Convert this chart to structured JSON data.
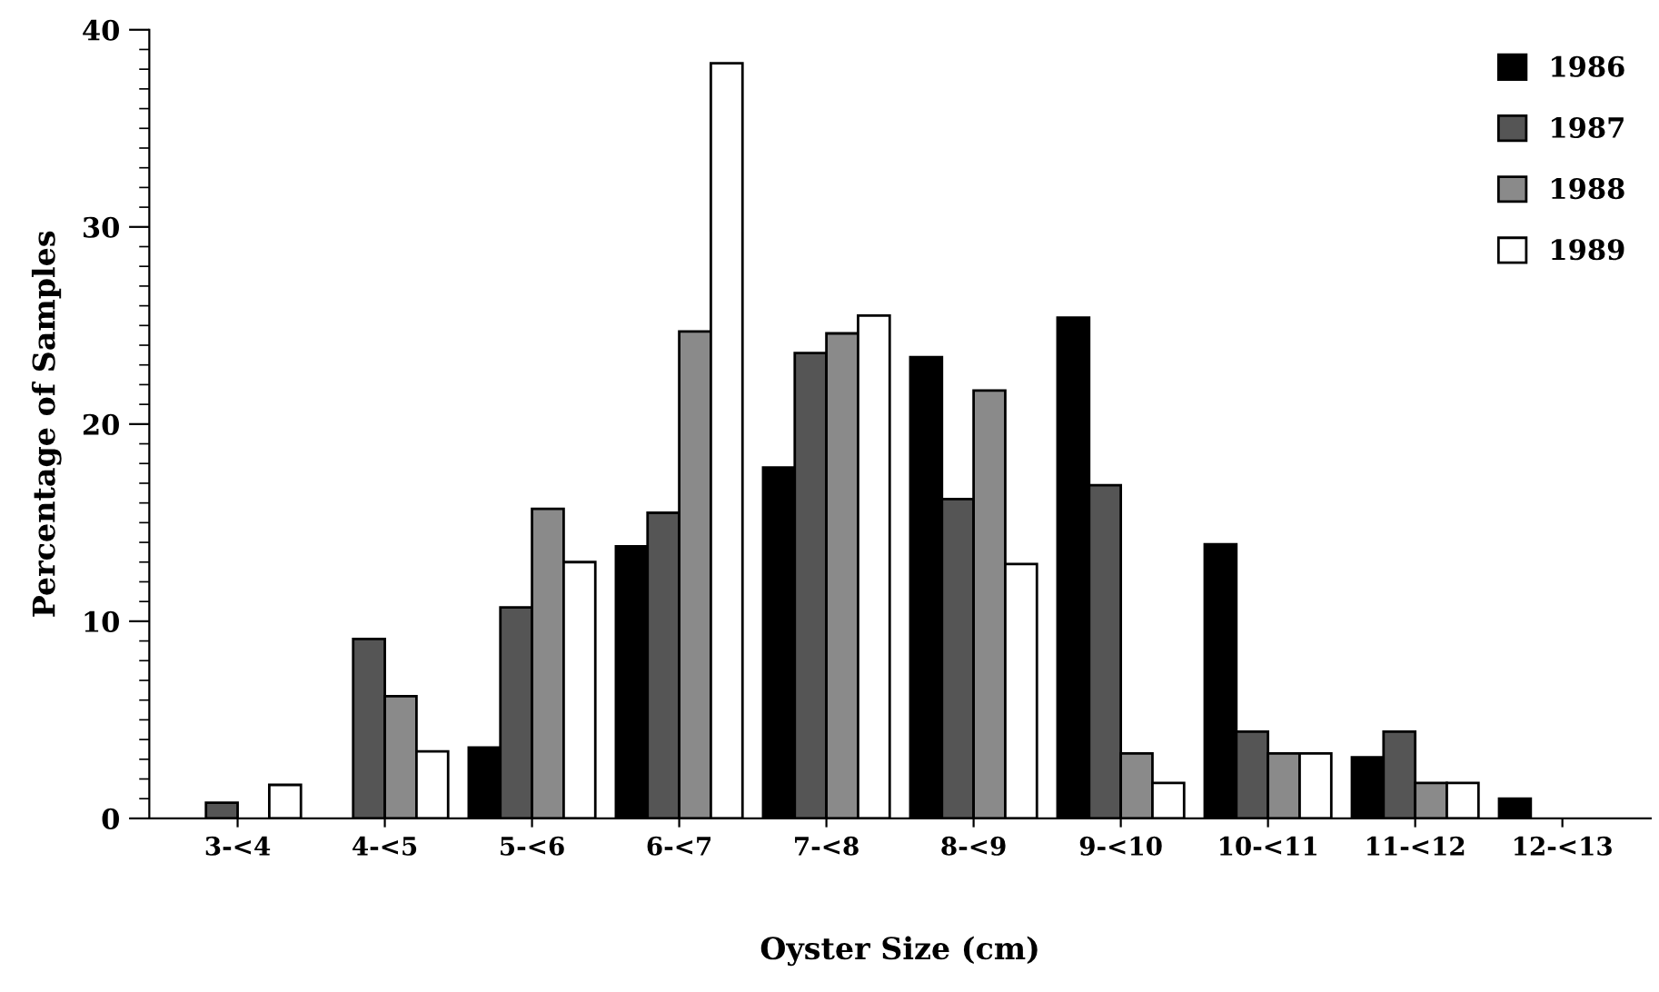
{
  "chart_data": {
    "type": "bar",
    "xlabel": "Oyster Size (cm)",
    "ylabel": "Percentage of Samples",
    "categories": [
      "3-<4",
      "4-<5",
      "5-<6",
      "6-<7",
      "7-<8",
      "8-<9",
      "9-<10",
      "10-<11",
      "11-<12",
      "12-<13"
    ],
    "series": [
      {
        "name": "1986",
        "color": "#000000",
        "values": [
          0,
          0,
          3.6,
          13.8,
          17.8,
          23.4,
          25.4,
          13.9,
          3.1,
          1.0
        ]
      },
      {
        "name": "1987",
        "color": "#555555",
        "values": [
          0.8,
          9.1,
          10.7,
          15.5,
          23.6,
          16.2,
          16.9,
          4.4,
          4.4,
          0
        ]
      },
      {
        "name": "1988",
        "color": "#8a8a8a",
        "values": [
          0,
          6.2,
          15.7,
          24.7,
          24.6,
          21.7,
          3.3,
          3.3,
          1.8,
          0
        ]
      },
      {
        "name": "1989",
        "color": "#ffffff",
        "values": [
          1.7,
          3.4,
          13.0,
          38.3,
          25.5,
          12.9,
          1.8,
          3.3,
          1.8,
          0
        ]
      }
    ],
    "ylim": [
      0,
      40
    ],
    "yticks": [
      0,
      10,
      20,
      30,
      40
    ],
    "grid": false,
    "legend": "top right"
  }
}
